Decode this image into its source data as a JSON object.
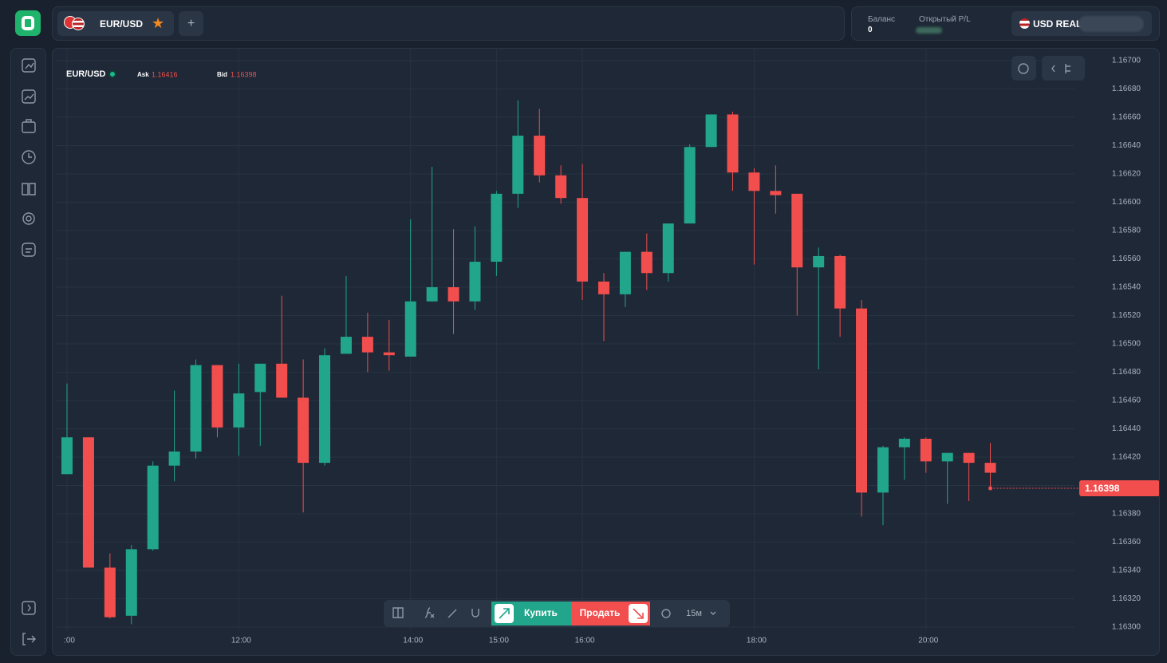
{
  "header": {
    "symbol": "EUR/USD",
    "add": "+"
  },
  "account": {
    "balance_label": "Баланс",
    "balance": 0,
    "pl_label": "Открытый P/L",
    "currency": "USD REAL"
  },
  "chart_data": {
    "type": "candlestick",
    "symbol": "EUR/USD",
    "ask_label": "Ask",
    "ask": 1.16416,
    "bid_label": "Bid",
    "bid": 1.16398,
    "current_price": 1.16398,
    "up_color": "#22a68b",
    "down_color": "#f24e4e",
    "categories": [
      ":00",
      null,
      null,
      null,
      null,
      null,
      null,
      null,
      "12:00",
      null,
      null,
      null,
      null,
      null,
      null,
      null,
      "14:00",
      null,
      null,
      null,
      "15:00",
      null,
      null,
      null,
      "16:00",
      null,
      null,
      null,
      null,
      null,
      null,
      null,
      "18:00",
      null,
      null,
      null,
      null,
      null,
      null,
      null,
      "20:00",
      null,
      null,
      null
    ],
    "open": [
      1.16408,
      1.16434,
      1.16342,
      1.16308,
      1.16355,
      1.16414,
      1.16424,
      1.16485,
      1.16441,
      1.16466,
      1.16486,
      1.16462,
      1.16416,
      1.16493,
      1.16505,
      1.16494,
      1.16491,
      1.1653,
      1.1654,
      1.1653,
      1.16558,
      1.16606,
      1.16647,
      1.16619,
      1.16603,
      1.16544,
      1.16535,
      1.16565,
      1.1655,
      1.16585,
      1.16639,
      1.16662,
      1.16621,
      1.16608,
      1.16606,
      1.16554,
      1.16562,
      1.16525,
      1.16395,
      1.16427,
      1.16433,
      1.16417,
      1.16423,
      1.16416
    ],
    "high": [
      1.16472,
      1.16434,
      1.16352,
      1.16358,
      1.16417,
      1.16467,
      1.16489,
      1.16485,
      1.16486,
      1.16486,
      1.16534,
      1.16489,
      1.16497,
      1.16548,
      1.16522,
      1.16517,
      1.16588,
      1.16625,
      1.16581,
      1.16583,
      1.16608,
      1.16672,
      1.16666,
      1.16626,
      1.16627,
      1.1655,
      1.16565,
      1.16578,
      1.16585,
      1.16641,
      1.16662,
      1.16664,
      1.16624,
      1.16626,
      1.16606,
      1.16568,
      1.16563,
      1.16531,
      1.16428,
      1.16434,
      1.16434,
      1.16423,
      1.16423,
      1.1643
    ],
    "low": [
      1.16408,
      1.16342,
      1.16306,
      1.16302,
      1.16354,
      1.16403,
      1.16419,
      1.16434,
      1.16421,
      1.16428,
      1.16462,
      1.16381,
      1.16414,
      1.16493,
      1.1648,
      1.16481,
      1.16491,
      1.1653,
      1.16507,
      1.16524,
      1.16548,
      1.16596,
      1.16614,
      1.16599,
      1.16531,
      1.16502,
      1.16526,
      1.16538,
      1.16544,
      1.16585,
      1.16639,
      1.16608,
      1.16556,
      1.16592,
      1.1652,
      1.16482,
      1.16505,
      1.16378,
      1.16372,
      1.16404,
      1.16409,
      1.16387,
      1.16389,
      1.16399
    ],
    "close": [
      1.16434,
      1.16342,
      1.16307,
      1.16355,
      1.16414,
      1.16424,
      1.16485,
      1.16441,
      1.16465,
      1.16486,
      1.16462,
      1.16416,
      1.16492,
      1.16505,
      1.16494,
      1.16492,
      1.1653,
      1.1654,
      1.1653,
      1.16558,
      1.16606,
      1.16647,
      1.16619,
      1.16603,
      1.16544,
      1.16535,
      1.16565,
      1.1655,
      1.16585,
      1.16639,
      1.16662,
      1.16621,
      1.16608,
      1.16605,
      1.16554,
      1.16562,
      1.16525,
      1.16395,
      1.16427,
      1.16433,
      1.16417,
      1.16423,
      1.16416,
      1.16409
    ],
    "ylim": [
      1.163,
      1.167
    ],
    "yticks": [
      {
        "value": 1.163,
        "label": "1.16300"
      },
      {
        "value": 1.1632,
        "label": "1.16320"
      },
      {
        "value": 1.1634,
        "label": "1.16340"
      },
      {
        "value": 1.1636,
        "label": "1.16360"
      },
      {
        "value": 1.1638,
        "label": "1.16380"
      },
      {
        "value": 1.164,
        "label": "1.16400"
      },
      {
        "value": 1.1642,
        "label": "1.16420"
      },
      {
        "value": 1.1644,
        "label": "1.16440"
      },
      {
        "value": 1.1646,
        "label": "1.16460"
      },
      {
        "value": 1.1648,
        "label": "1.16480"
      },
      {
        "value": 1.165,
        "label": "1.16500"
      },
      {
        "value": 1.1652,
        "label": "1.16520"
      },
      {
        "value": 1.1654,
        "label": "1.16540"
      },
      {
        "value": 1.1656,
        "label": "1.16560"
      },
      {
        "value": 1.1658,
        "label": "1.16580"
      },
      {
        "value": 1.166,
        "label": "1.16600"
      },
      {
        "value": 1.1662,
        "label": "1.16620"
      },
      {
        "value": 1.1664,
        "label": "1.16640"
      },
      {
        "value": 1.1666,
        "label": "1.16660"
      },
      {
        "value": 1.1668,
        "label": "1.16680"
      },
      {
        "value": 1.167,
        "label": "1.16700"
      }
    ],
    "grid": true
  },
  "toolbar": {
    "buy": "Купить",
    "sell": "Продать",
    "timeframe": "15м"
  }
}
